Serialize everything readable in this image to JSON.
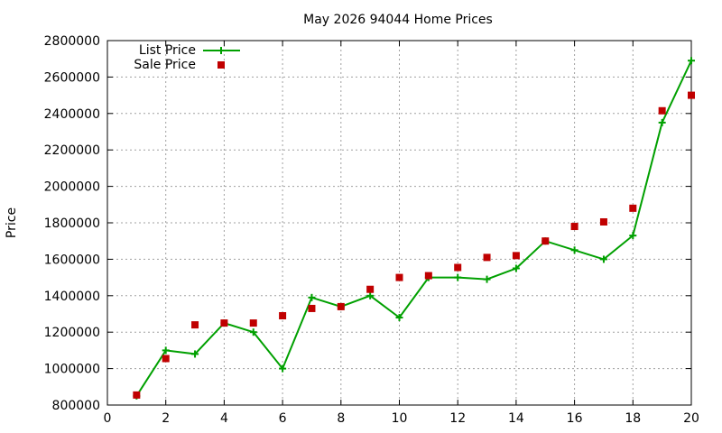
{
  "chart_data": {
    "type": "line",
    "title": "May 2026 94044 Home Prices",
    "xlabel": "",
    "ylabel": "Price",
    "xlim": [
      0,
      20
    ],
    "ylim": [
      800000,
      2800000
    ],
    "x_ticks": [
      0,
      2,
      4,
      6,
      8,
      10,
      12,
      14,
      16,
      18,
      20
    ],
    "y_ticks": [
      800000,
      1000000,
      1200000,
      1400000,
      1600000,
      1800000,
      2000000,
      2200000,
      2400000,
      2600000,
      2800000
    ],
    "grid": true,
    "legend_position": "top-left",
    "colors": {
      "list_price": "#00a000",
      "sale_price": "#c00000",
      "grid": "#a0a0a0",
      "axis": "#000000"
    },
    "series": [
      {
        "name": "List Price",
        "style": "line+cross",
        "x": [
          1,
          2,
          3,
          4,
          5,
          6,
          7,
          8,
          9,
          10,
          11,
          12,
          13,
          14,
          15,
          16,
          17,
          18,
          19,
          20
        ],
        "y": [
          850000,
          1100000,
          1080000,
          1250000,
          1200000,
          1000000,
          1390000,
          1340000,
          1400000,
          1280000,
          1500000,
          1500000,
          1490000,
          1550000,
          1700000,
          1650000,
          1600000,
          1730000,
          2350000,
          2690000
        ]
      },
      {
        "name": "Sale Price",
        "style": "square",
        "x": [
          1,
          2,
          3,
          4,
          5,
          6,
          7,
          8,
          9,
          10,
          11,
          12,
          13,
          14,
          15,
          16,
          17,
          18,
          19,
          20
        ],
        "y": [
          855000,
          1055000,
          1240000,
          1250000,
          1250000,
          1290000,
          1330000,
          1340000,
          1435000,
          1500000,
          1510000,
          1555000,
          1610000,
          1620000,
          1700000,
          1780000,
          1805000,
          1880000,
          2415000,
          2500000
        ]
      }
    ]
  }
}
